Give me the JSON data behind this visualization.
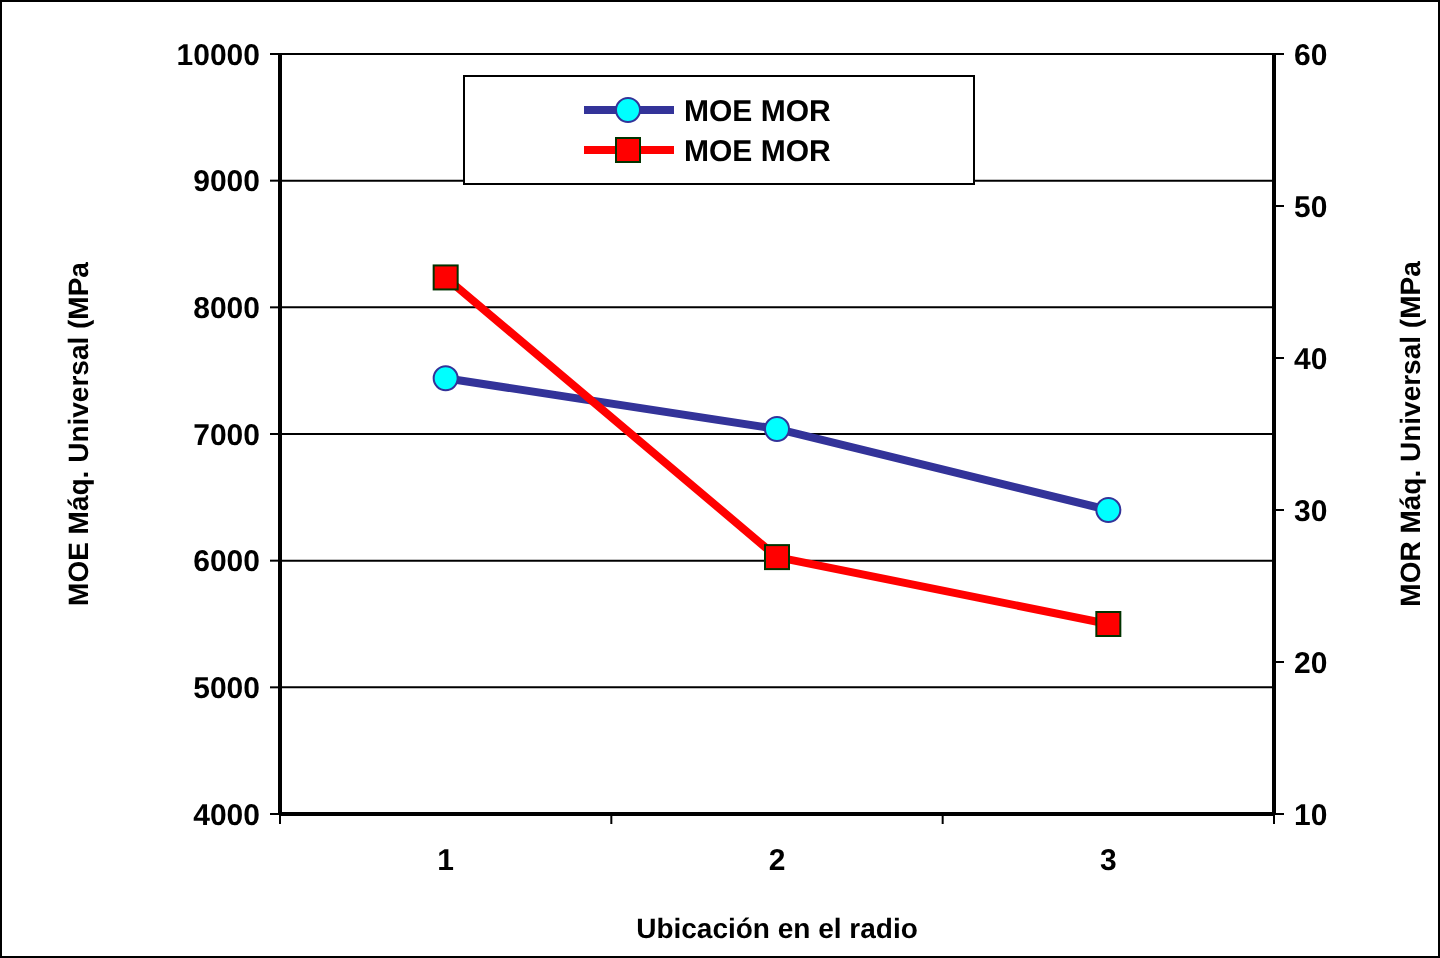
{
  "chart_data": {
    "type": "line",
    "xlabel": "Ubicación en el radio",
    "ylabel": "MOE Máq. Universal (MPa",
    "y2label": "MOR Máq. Universal (MPa",
    "categories": [
      "1",
      "2",
      "3"
    ],
    "series": [
      {
        "name": "MOE MOR",
        "color": "#333399",
        "values": [
          7440,
          7040,
          6400
        ],
        "marker": "circle"
      },
      {
        "name": "MOE MOR",
        "color": "#ff0000",
        "values": [
          45.3,
          26.9,
          22.5
        ],
        "marker": "square",
        "axis": "y2"
      }
    ],
    "ylim": [
      4000,
      10000
    ],
    "yticks": [
      4000,
      5000,
      6000,
      7000,
      8000,
      9000,
      10000
    ],
    "y2lim": [
      10,
      60
    ],
    "y2ticks": [
      10,
      20,
      30,
      40,
      50,
      60
    ],
    "grid": "y",
    "legend": "top"
  }
}
